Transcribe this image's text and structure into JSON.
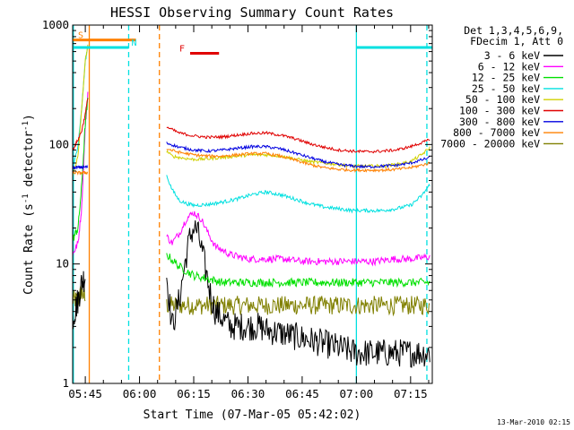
{
  "chart_data": {
    "type": "line",
    "title": "HESSI Observing Summary Count Rates",
    "xlabel": "Start Time (07-Mar-05 05:42:02)",
    "ylabel": "Count Rate (s⁻¹ detector⁻¹)",
    "ylabel_main": "Count Rate (s",
    "ylabel_sup1": "-1",
    "ylabel_mid": " detector",
    "ylabel_sup2": "-1",
    "ylabel_end": ")",
    "y_scale": "log",
    "ylim": [
      1,
      1000
    ],
    "xlim_minutes": [
      -3.5,
      96
    ],
    "x_ticks": [
      {
        "label": "05:45",
        "minutes": 0
      },
      {
        "label": "06:00",
        "minutes": 15
      },
      {
        "label": "06:15",
        "minutes": 30
      },
      {
        "label": "06:30",
        "minutes": 45
      },
      {
        "label": "06:45",
        "minutes": 60
      },
      {
        "label": "07:00",
        "minutes": 75
      },
      {
        "label": "07:15",
        "minutes": 90
      }
    ],
    "y_ticks": [
      {
        "label": "1",
        "value": 1
      },
      {
        "label": "10",
        "value": 10
      },
      {
        "label": "100",
        "value": 100
      },
      {
        "label": "1000",
        "value": 1000
      }
    ],
    "legend_header": [
      "Det 1,3,4,5,6,9,",
      "FDecim 1, Att 0"
    ],
    "legend_placement": "right",
    "footer": "13-Mar-2010 02:15",
    "flags": [
      {
        "label": "S",
        "color": "#ff8000",
        "y": 750,
        "x": [
          -3.5,
          14
        ]
      },
      {
        "label": "N",
        "color": "#00e0e0",
        "y": 650,
        "x": [
          -3.5,
          12
        ]
      },
      {
        "label": "F",
        "color": "#e00000",
        "y": 580,
        "x": [
          29,
          37
        ]
      },
      {
        "label": "",
        "color": "#00e0e0",
        "y": 650,
        "x": [
          75,
          96
        ]
      }
    ],
    "vlines": [
      {
        "x": -3.3,
        "color": "#00e0e0",
        "style": "solid"
      },
      {
        "x": 1.1,
        "color": "#ff8000",
        "style": "solid"
      },
      {
        "x": 12,
        "color": "#00e0e0",
        "style": "dashed"
      },
      {
        "x": 20.5,
        "color": "#ff8000",
        "style": "dashed"
      },
      {
        "x": 75,
        "color": "#00e0e0",
        "style": "solid"
      },
      {
        "x": 94.5,
        "color": "#00e0e0",
        "style": "dashed"
      }
    ],
    "gap_minutes": [
      0.8,
      22.5
    ],
    "series": [
      {
        "name": "3 - 6 keV",
        "color": "#000000",
        "noise": 0.12,
        "pre": [
          [
            -3.5,
            3.5
          ],
          [
            -2,
            5
          ],
          [
            -1,
            7
          ],
          [
            0,
            8
          ]
        ],
        "x": [
          22.5,
          24,
          26,
          28,
          29,
          30,
          31,
          32,
          33,
          34,
          35,
          36,
          38,
          40,
          42,
          44,
          46,
          48,
          50,
          55,
          60,
          65,
          70,
          75,
          80,
          85,
          90,
          94,
          95.5
        ],
        "y": [
          8,
          3,
          5,
          12,
          17,
          20,
          19,
          14,
          10,
          7,
          5,
          4,
          3.5,
          3,
          3,
          3,
          3,
          3,
          2.8,
          2.6,
          2.4,
          2.2,
          2,
          1.8,
          1.8,
          1.8,
          1.8,
          1.8,
          1.8
        ]
      },
      {
        "name": "6 - 12 keV",
        "color": "#ff00ff",
        "noise": 0.03,
        "pre": [
          [
            -3.5,
            12
          ],
          [
            -2,
            15
          ],
          [
            -1,
            30
          ],
          [
            0,
            140
          ],
          [
            0.8,
            300
          ]
        ],
        "x": [
          22.5,
          24,
          26,
          28,
          30,
          32,
          34,
          36,
          38,
          40,
          45,
          50,
          55,
          60,
          65,
          70,
          75,
          80,
          85,
          90,
          95.5
        ],
        "y": [
          17,
          15,
          18,
          24,
          27,
          24,
          18,
          14,
          13,
          12,
          11,
          11,
          11,
          10.5,
          10.5,
          10.5,
          10.5,
          10.5,
          11,
          11,
          11.5
        ]
      },
      {
        "name": "12 - 25 keV",
        "color": "#00e000",
        "noise": 0.035,
        "pre": [
          [
            -3.5,
            16
          ],
          [
            -2,
            20
          ],
          [
            -1,
            45
          ],
          [
            0,
            150
          ],
          [
            0.8,
            250
          ]
        ],
        "x": [
          22.5,
          26,
          30,
          34,
          38,
          42,
          46,
          50,
          55,
          60,
          65,
          70,
          75,
          80,
          85,
          90,
          95.5
        ],
        "y": [
          12,
          9.5,
          8,
          7.5,
          7,
          7,
          7,
          7,
          7,
          7,
          7,
          7,
          7,
          7,
          7,
          7,
          7
        ]
      },
      {
        "name": "25 - 50 keV",
        "color": "#00e0e0",
        "noise": 0.015,
        "pre": [
          [
            -3.5,
            60
          ],
          [
            -2,
            100
          ],
          [
            -1,
            200
          ],
          [
            0,
            500
          ],
          [
            0.8,
            700
          ]
        ],
        "x": [
          22.5,
          24,
          26,
          28,
          30,
          34,
          38,
          42,
          46,
          50,
          54,
          58,
          62,
          66,
          70,
          74,
          78,
          82,
          86,
          90,
          93,
          95.5
        ],
        "y": [
          55,
          42,
          34,
          32,
          31,
          31.5,
          33,
          35,
          38,
          40,
          38,
          35,
          32,
          30,
          29,
          28,
          28,
          28,
          29,
          31,
          37,
          47
        ]
      },
      {
        "name": "50 - 100 keV",
        "color": "#d0d000",
        "noise": 0.013,
        "pre": [
          [
            -3.5,
            55
          ],
          [
            -2,
            80
          ],
          [
            -1,
            200
          ],
          [
            0,
            500
          ],
          [
            0.8,
            700
          ]
        ],
        "x": [
          22.5,
          24,
          27,
          30,
          34,
          38,
          42,
          46,
          50,
          54,
          58,
          62,
          66,
          70,
          74,
          78,
          82,
          86,
          90,
          93,
          95.5
        ],
        "y": [
          88,
          80,
          77,
          75,
          76,
          78,
          80,
          82,
          82,
          80,
          76,
          72,
          70,
          68,
          66,
          66,
          66,
          68,
          72,
          82,
          95
        ]
      },
      {
        "name": "100 - 300 keV",
        "color": "#e00000",
        "noise": 0.012,
        "pre": [
          [
            -3.5,
            90
          ],
          [
            -2,
            110
          ],
          [
            -1,
            130
          ],
          [
            0,
            180
          ],
          [
            0.8,
            260
          ]
        ],
        "x": [
          22.5,
          26,
          30,
          34,
          38,
          42,
          46,
          50,
          54,
          58,
          62,
          66,
          70,
          74,
          78,
          82,
          86,
          90,
          95.5
        ],
        "y": [
          140,
          125,
          118,
          115,
          116,
          120,
          124,
          125,
          120,
          112,
          102,
          95,
          90,
          88,
          87,
          88,
          90,
          96,
          110
        ]
      },
      {
        "name": "300 - 800 keV",
        "color": "#0000e0",
        "noise": 0.012,
        "pre": [
          [
            -3.5,
            64
          ],
          [
            0.8,
            65
          ]
        ],
        "x": [
          22.5,
          26,
          30,
          34,
          38,
          42,
          46,
          50,
          54,
          58,
          62,
          66,
          70,
          74,
          78,
          82,
          86,
          90,
          95.5
        ],
        "y": [
          103,
          95,
          90,
          88,
          90,
          93,
          96,
          96,
          92,
          85,
          78,
          72,
          68,
          66,
          65,
          66,
          67,
          70,
          78
        ]
      },
      {
        "name": "800 - 7000 keV",
        "color": "#ff8000",
        "noise": 0.012,
        "pre": [
          [
            -3.5,
            58
          ],
          [
            0.8,
            58
          ]
        ],
        "x": [
          22.5,
          26,
          30,
          34,
          38,
          42,
          46,
          50,
          54,
          58,
          62,
          66,
          70,
          74,
          78,
          82,
          86,
          90,
          95.5
        ],
        "y": [
          92,
          86,
          82,
          80,
          80,
          82,
          84,
          84,
          80,
          74,
          68,
          64,
          62,
          61,
          61,
          61,
          62,
          64,
          70
        ]
      },
      {
        "name": "7000 - 20000 keV",
        "color": "#808000",
        "noise": 0.08,
        "pre": [
          [
            -3.5,
            5
          ],
          [
            -2,
            5
          ],
          [
            -1,
            6
          ],
          [
            0,
            5
          ]
        ],
        "x": [
          22.5,
          30,
          40,
          50,
          60,
          70,
          80,
          90,
          95.5
        ],
        "y": [
          4.5,
          4.5,
          4.5,
          4.5,
          4.5,
          4.5,
          4.5,
          4.5,
          4.5
        ]
      }
    ]
  }
}
